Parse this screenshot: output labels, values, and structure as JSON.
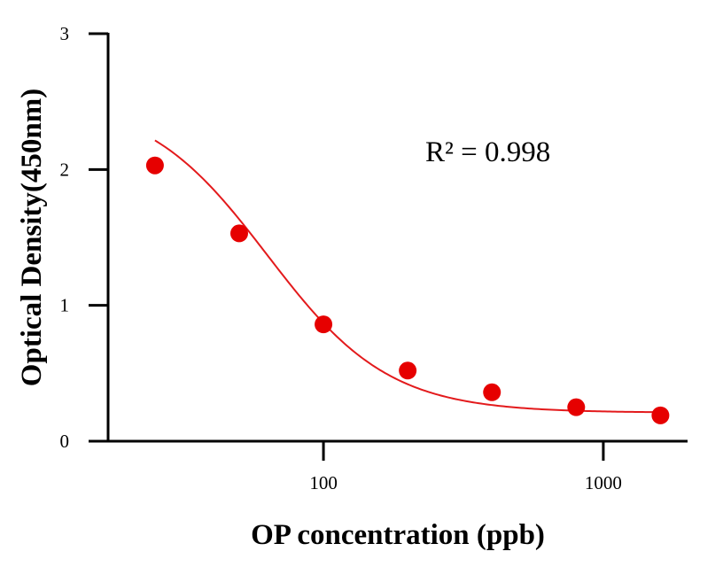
{
  "chart_data": {
    "type": "scatter",
    "xlabel": "OP concentration (ppb)",
    "ylabel": "Optical Density(450nm)",
    "xscale": "log",
    "xlim": [
      17,
      2000
    ],
    "ylim": [
      0,
      3
    ],
    "x_ticks": [
      100,
      1000
    ],
    "x_tick_labels": [
      "100",
      "1000"
    ],
    "y_ticks": [
      0,
      1,
      2,
      3
    ],
    "y_tick_labels": [
      "0",
      "1",
      "2",
      "3"
    ],
    "grid": false,
    "series": [
      {
        "x": [
          25,
          50,
          100,
          200,
          400,
          800,
          1600
        ],
        "y": [
          2.03,
          1.53,
          0.86,
          0.52,
          0.36,
          0.25,
          0.19
        ],
        "color": "#e60000",
        "marker": "circle"
      }
    ],
    "fit": {
      "model": "four-parameter logistic",
      "top": 2.53,
      "bottom": 0.21,
      "ec50": 63,
      "hill": 2.0,
      "color": "#e31a1c"
    },
    "annotations": [
      {
        "text": "R² = 0.998"
      }
    ]
  }
}
